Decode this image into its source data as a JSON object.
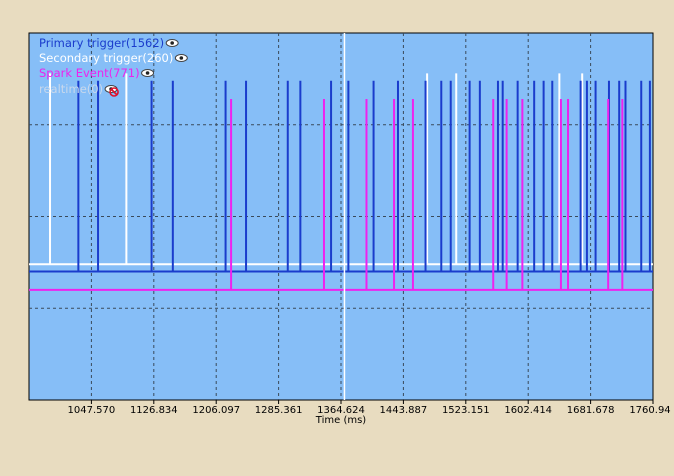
{
  "chart_data": {
    "type": "line",
    "xlabel": "Time (ms)",
    "x_ticks": [
      "1047.570",
      "1126.834",
      "1206.097",
      "1285.361",
      "1364.624",
      "1443.887",
      "1523.151",
      "1602.414",
      "1681.678",
      "1760.94"
    ],
    "xlim": [
      968.3,
      1760.94
    ],
    "cursor_x": 1369.0,
    "grid": true,
    "legend_placement": "top-left",
    "series": [
      {
        "name": "Primary trigger(1562)",
        "color": "#1a3ccc",
        "baseline_level": 0.35,
        "pulse_level": 0.87,
        "events": [
          1031,
          1056,
          1124,
          1151,
          1218,
          1244,
          1297,
          1313,
          1352,
          1374,
          1406,
          1437,
          1472,
          1492,
          1504,
          1528,
          1541,
          1564,
          1570,
          1589,
          1610,
          1622,
          1633,
          1669,
          1677,
          1688,
          1705,
          1718,
          1726,
          1746,
          1757
        ]
      },
      {
        "name": "Secondary trigger(260)",
        "color": "#ffffff",
        "baseline_level": 0.37,
        "pulse_level": 0.89,
        "events": [
          995,
          1092,
          1474,
          1511,
          1642,
          1671
        ]
      },
      {
        "name": "Spark Event(771)",
        "color": "#ee22ee",
        "baseline_level": 0.3,
        "pulse_level": 0.82,
        "events": [
          1225,
          1343,
          1397,
          1432,
          1456,
          1558,
          1575,
          1595,
          1644,
          1653,
          1704,
          1722
        ]
      },
      {
        "name": "realtime(0)",
        "color": "#c8d8ec",
        "hidden": true,
        "events": []
      }
    ]
  }
}
